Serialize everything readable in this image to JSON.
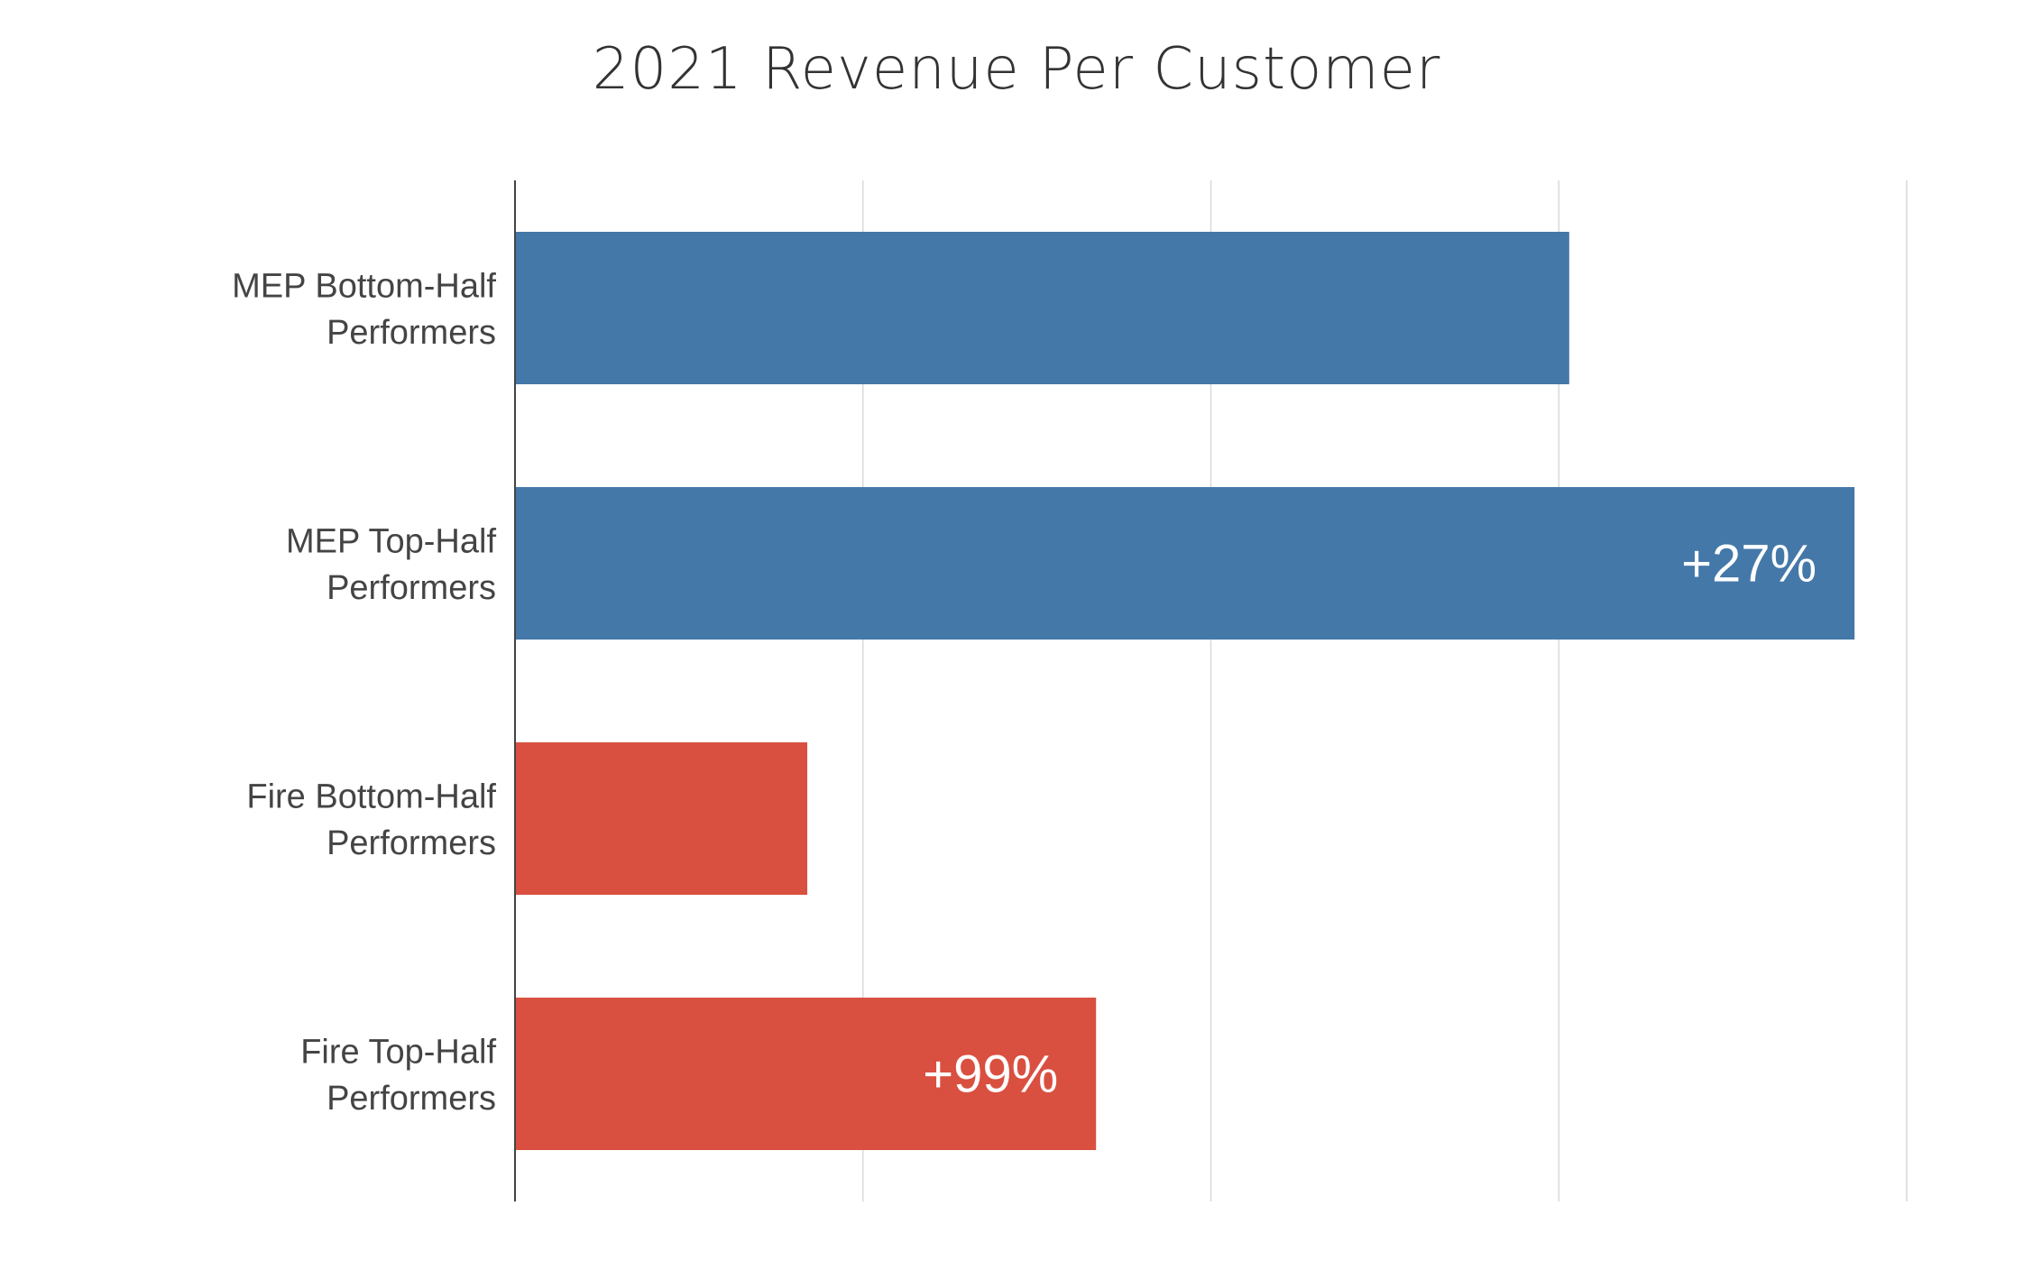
{
  "chart_data": {
    "type": "bar",
    "orientation": "horizontal",
    "title": "2021 Revenue Per Customer",
    "xlabel": "",
    "ylabel": "",
    "categories": [
      [
        "MEP Bottom-Half",
        "Performers"
      ],
      [
        "MEP Top-Half",
        "Performers"
      ],
      [
        "Fire Bottom-Half",
        "Performers"
      ],
      [
        "Fire Top-Half",
        "Performers"
      ]
    ],
    "values": [
      3.03,
      3.85,
      0.84,
      1.67
    ],
    "data_labels": [
      "",
      "+27%",
      "",
      "+99%"
    ],
    "colors": [
      "#4478a8",
      "#4478a8",
      "#d95040",
      "#d95040"
    ],
    "xlim": [
      0,
      4
    ],
    "grid": true,
    "x_tick_labels_shown": false,
    "legend": "none"
  }
}
